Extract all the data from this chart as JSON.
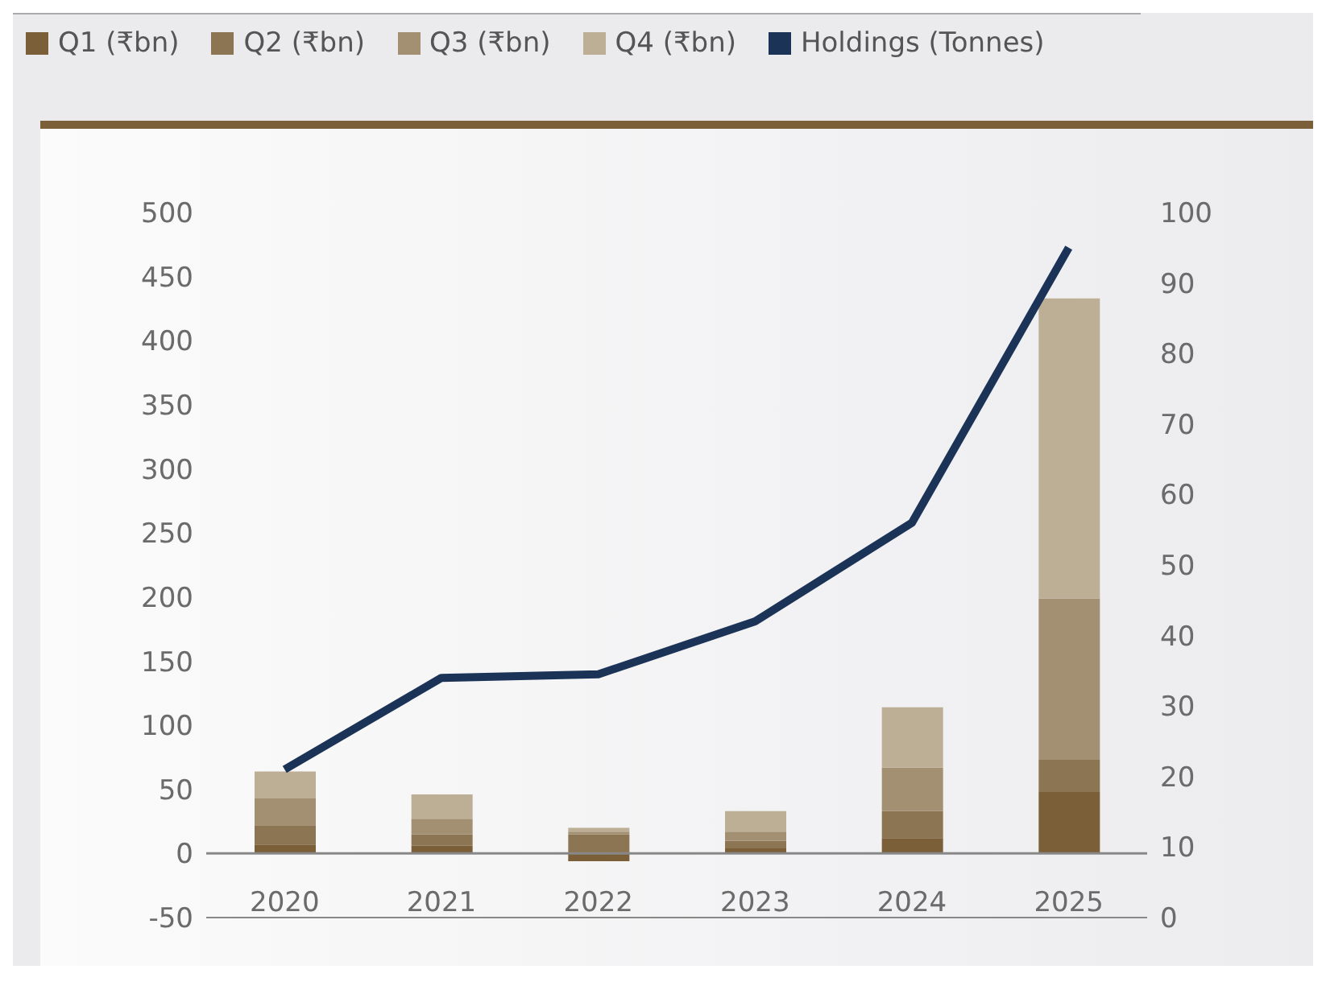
{
  "chart_data": {
    "type": "bar",
    "stacked": true,
    "categories": [
      "2020",
      "2021",
      "2022",
      "2023",
      "2024",
      "2025"
    ],
    "series": [
      {
        "name": "Q1 (₹bn)",
        "color": "#7a5f38",
        "values": [
          7,
          6,
          -6,
          4,
          12,
          48
        ]
      },
      {
        "name": "Q2 (₹bn)",
        "color": "#8c7553",
        "values": [
          15,
          9,
          15,
          6,
          21,
          25
        ]
      },
      {
        "name": "Q3 (₹bn)",
        "color": "#a38f72",
        "values": [
          21,
          12,
          2,
          7,
          34,
          126
        ]
      },
      {
        "name": "Q4 (₹bn)",
        "color": "#bdae96",
        "values": [
          21,
          19,
          3,
          16,
          47,
          234
        ]
      },
      {
        "name": "Holdings (Tonnes)",
        "type": "line",
        "axis": "y2",
        "color": "#1c3358",
        "marker": "none",
        "values": [
          21,
          34,
          34.5,
          42,
          56,
          95
        ]
      }
    ],
    "ylim": [
      -50,
      500
    ],
    "yticks": [
      -50,
      0,
      50,
      100,
      150,
      200,
      250,
      300,
      350,
      400,
      450,
      500
    ],
    "y2lim": [
      0,
      100
    ],
    "y2ticks": [
      0,
      10,
      20,
      30,
      40,
      50,
      60,
      70,
      80,
      90,
      100
    ],
    "ref_lines": [
      {
        "axis": "y",
        "value": 0,
        "color": "#888888"
      }
    ],
    "grid": false,
    "legend": "top"
  }
}
